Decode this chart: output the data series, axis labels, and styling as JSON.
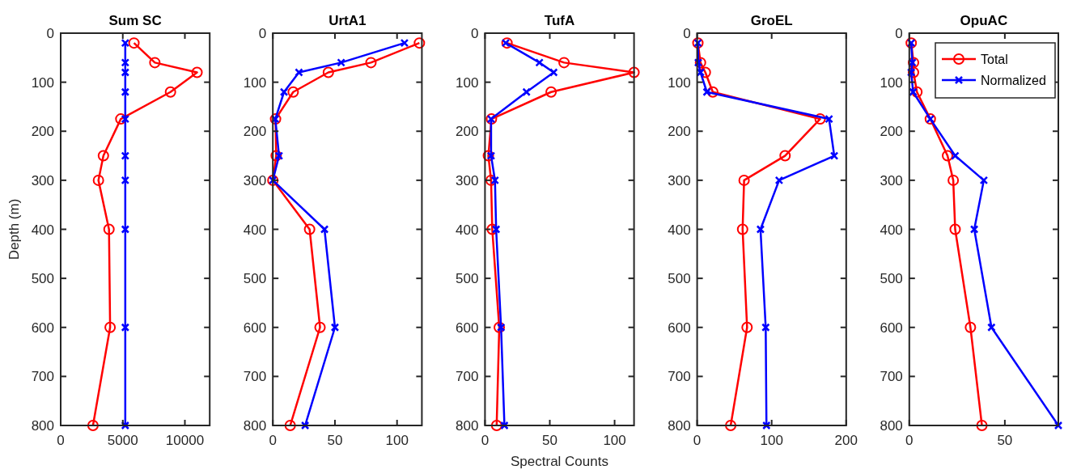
{
  "chart_data": [
    {
      "type": "line",
      "title": "Sum SC",
      "ylabel": "Depth (m)",
      "xlim": [
        0,
        12000
      ],
      "xticks": [
        0,
        5000,
        10000
      ],
      "ylim": [
        800,
        0
      ],
      "yticks": [
        0,
        100,
        200,
        300,
        400,
        500,
        600,
        700,
        800
      ],
      "grid": false,
      "line_style": "solid",
      "tick_labels": "xy",
      "series": [
        {
          "color": "#ff0000",
          "marker": "circle",
          "x": [
            5900,
            7580,
            10980,
            8840,
            4840,
            3440,
            3040,
            3890,
            3980,
            2600
          ],
          "values": [
            20,
            60,
            80,
            120,
            175,
            250,
            300,
            400,
            600,
            800
          ]
        },
        {
          "color": "#0000ff",
          "marker": "cross",
          "x": [
            5200,
            5200,
            5200,
            5200,
            5200,
            5200,
            5200,
            5200,
            5200,
            5200
          ],
          "values": [
            20,
            60,
            80,
            120,
            175,
            250,
            300,
            400,
            600,
            800
          ]
        }
      ]
    },
    {
      "type": "line",
      "title": "UrtA1",
      "xlim": [
        0,
        120
      ],
      "xticks": [
        0,
        50,
        100
      ],
      "ylim": [
        800,
        0
      ],
      "yticks": [
        0,
        100,
        200,
        300,
        400,
        500,
        600,
        700,
        800
      ],
      "grid": false,
      "line_style": "solid",
      "series": [
        {
          "color": "#ff0000",
          "marker": "circle",
          "x": [
            118,
            79,
            44.7,
            16.4,
            2.2,
            2.7,
            0,
            29.6,
            38,
            14
          ],
          "values": [
            20,
            60,
            80,
            120,
            175,
            250,
            300,
            400,
            600,
            800
          ]
        },
        {
          "color": "#0000ff",
          "marker": "cross",
          "x": [
            106,
            55,
            21,
            9,
            2,
            5,
            0,
            41.6,
            50,
            26
          ],
          "values": [
            20,
            60,
            80,
            120,
            175,
            250,
            300,
            400,
            600,
            800
          ]
        }
      ]
    },
    {
      "type": "line",
      "title": "TufA",
      "xlabel": "Spectral Counts",
      "xlim": [
        0,
        115
      ],
      "xticks": [
        0,
        50,
        100
      ],
      "ylim": [
        800,
        0
      ],
      "yticks": [
        0,
        100,
        200,
        300,
        400,
        500,
        600,
        700,
        800
      ],
      "grid": false,
      "line_style": "solid",
      "series": [
        {
          "color": "#ff0000",
          "marker": "circle",
          "x": [
            17,
            61,
            115,
            51,
            5,
            2.6,
            4.7,
            5.6,
            11,
            9
          ],
          "values": [
            20,
            60,
            80,
            120,
            175,
            250,
            300,
            400,
            600,
            800
          ]
        },
        {
          "color": "#0000ff",
          "marker": "cross",
          "x": [
            16,
            42,
            53,
            32,
            4.7,
            4.7,
            7.7,
            8.6,
            12.4,
            15
          ],
          "values": [
            20,
            60,
            80,
            120,
            175,
            250,
            300,
            400,
            600,
            800
          ]
        }
      ]
    },
    {
      "type": "line",
      "title": "GroEL",
      "xlim": [
        0,
        200
      ],
      "xticks": [
        0,
        100,
        200
      ],
      "ylim": [
        800,
        0
      ],
      "yticks": [
        0,
        100,
        200,
        300,
        400,
        500,
        600,
        700,
        800
      ],
      "grid": false,
      "line_style": "solid",
      "series": [
        {
          "color": "#ff0000",
          "marker": "circle",
          "x": [
            1,
            4.5,
            11,
            21,
            165,
            118,
            63,
            61,
            67,
            45
          ],
          "values": [
            20,
            60,
            80,
            120,
            175,
            250,
            300,
            400,
            600,
            800
          ]
        },
        {
          "color": "#0000ff",
          "marker": "cross",
          "x": [
            1,
            1.5,
            4.5,
            13,
            177,
            184,
            110,
            85,
            92,
            93
          ],
          "values": [
            20,
            60,
            80,
            120,
            175,
            250,
            300,
            400,
            600,
            800
          ]
        }
      ]
    },
    {
      "type": "line",
      "title": "OpuAC",
      "xlim": [
        0,
        78
      ],
      "xticks": [
        0,
        50
      ],
      "ylim": [
        800,
        0
      ],
      "yticks": [
        0,
        100,
        200,
        300,
        400,
        500,
        600,
        700,
        800
      ],
      "grid": false,
      "line_style": "solid",
      "legend": "top right",
      "series": [
        {
          "name": "Total",
          "color": "#ff0000",
          "marker": "circle",
          "x": [
            1,
            2.2,
            2.2,
            4,
            11,
            20,
            23,
            24,
            32,
            38
          ],
          "values": [
            20,
            60,
            80,
            120,
            175,
            250,
            300,
            400,
            600,
            800
          ]
        },
        {
          "name": "Normalized",
          "color": "#0000ff",
          "marker": "cross",
          "x": [
            1,
            1.6,
            1,
            2,
            11,
            24,
            39,
            34,
            43,
            78
          ],
          "values": [
            20,
            60,
            80,
            120,
            175,
            250,
            300,
            400,
            600,
            800
          ]
        }
      ]
    }
  ]
}
